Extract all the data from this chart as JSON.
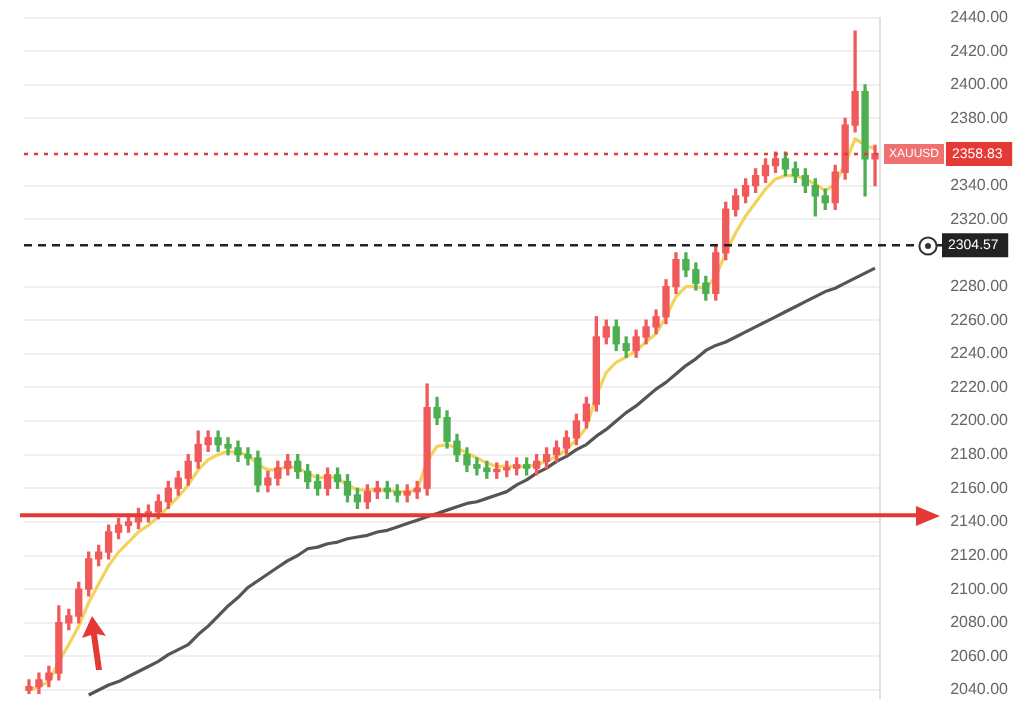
{
  "chart_data": {
    "type": "candlestick",
    "categories": [
      null,
      null,
      null,
      null,
      null,
      null,
      null,
      null,
      null,
      null,
      null,
      null,
      null,
      null,
      null,
      null,
      null,
      null,
      null,
      null,
      null,
      null,
      null,
      null,
      null,
      null,
      null,
      null,
      null,
      null,
      null,
      null,
      null,
      null,
      null,
      null,
      null,
      null,
      null,
      null,
      null,
      null,
      null,
      null,
      null,
      null,
      null,
      null,
      null,
      null,
      null,
      null,
      null,
      null,
      null,
      null,
      null,
      null,
      null,
      null,
      null,
      null,
      null,
      null,
      null,
      null,
      null,
      null,
      null,
      null,
      null,
      null,
      null,
      null,
      null,
      null,
      null,
      null,
      null,
      null,
      null,
      null,
      null,
      null,
      null,
      null
    ],
    "ohlc": [
      [
        2040,
        2046,
        2038,
        2042
      ],
      [
        2042,
        2050,
        2038,
        2046
      ],
      [
        2046,
        2054,
        2042,
        2050
      ],
      [
        2050,
        2090,
        2046,
        2080
      ],
      [
        2080,
        2088,
        2076,
        2084
      ],
      [
        2084,
        2104,
        2080,
        2100
      ],
      [
        2100,
        2122,
        2096,
        2118
      ],
      [
        2118,
        2126,
        2114,
        2122
      ],
      [
        2122,
        2138,
        2118,
        2134
      ],
      [
        2134,
        2142,
        2130,
        2138
      ],
      [
        2138,
        2144,
        2134,
        2140
      ],
      [
        2140,
        2148,
        2136,
        2144
      ],
      [
        2144,
        2150,
        2140,
        2146
      ],
      [
        2146,
        2156,
        2142,
        2152
      ],
      [
        2152,
        2164,
        2148,
        2160
      ],
      [
        2160,
        2170,
        2156,
        2166
      ],
      [
        2166,
        2180,
        2162,
        2176
      ],
      [
        2176,
        2194,
        2172,
        2186
      ],
      [
        2186,
        2194,
        2182,
        2190
      ],
      [
        2190,
        2194,
        2182,
        2186
      ],
      [
        2186,
        2190,
        2180,
        2184
      ],
      [
        2184,
        2188,
        2176,
        2180
      ],
      [
        2180,
        2184,
        2174,
        2178
      ],
      [
        2178,
        2182,
        2158,
        2162
      ],
      [
        2162,
        2170,
        2158,
        2166
      ],
      [
        2166,
        2176,
        2162,
        2172
      ],
      [
        2172,
        2180,
        2168,
        2176
      ],
      [
        2176,
        2180,
        2166,
        2170
      ],
      [
        2170,
        2174,
        2160,
        2164
      ],
      [
        2164,
        2168,
        2156,
        2160
      ],
      [
        2160,
        2172,
        2156,
        2168
      ],
      [
        2168,
        2172,
        2160,
        2164
      ],
      [
        2164,
        2168,
        2152,
        2156
      ],
      [
        2156,
        2160,
        2148,
        2152
      ],
      [
        2152,
        2162,
        2148,
        2158
      ],
      [
        2158,
        2164,
        2154,
        2160
      ],
      [
        2160,
        2164,
        2154,
        2158
      ],
      [
        2158,
        2162,
        2152,
        2156
      ],
      [
        2156,
        2162,
        2152,
        2158
      ],
      [
        2158,
        2164,
        2154,
        2160
      ],
      [
        2160,
        2222,
        2156,
        2208
      ],
      [
        2208,
        2214,
        2198,
        2202
      ],
      [
        2202,
        2206,
        2184,
        2188
      ],
      [
        2188,
        2192,
        2176,
        2180
      ],
      [
        2180,
        2184,
        2170,
        2174
      ],
      [
        2174,
        2178,
        2168,
        2172
      ],
      [
        2172,
        2176,
        2166,
        2170
      ],
      [
        2170,
        2175,
        2166,
        2171
      ],
      [
        2171,
        2176,
        2167,
        2172
      ],
      [
        2172,
        2178,
        2168,
        2174
      ],
      [
        2174,
        2178,
        2168,
        2172
      ],
      [
        2172,
        2180,
        2168,
        2176
      ],
      [
        2176,
        2184,
        2172,
        2180
      ],
      [
        2180,
        2188,
        2176,
        2184
      ],
      [
        2184,
        2194,
        2180,
        2190
      ],
      [
        2190,
        2204,
        2186,
        2200
      ],
      [
        2200,
        2214,
        2196,
        2210
      ],
      [
        2210,
        2262,
        2206,
        2250
      ],
      [
        2250,
        2260,
        2246,
        2256
      ],
      [
        2256,
        2260,
        2242,
        2246
      ],
      [
        2246,
        2250,
        2238,
        2242
      ],
      [
        2242,
        2254,
        2238,
        2250
      ],
      [
        2250,
        2260,
        2246,
        2256
      ],
      [
        2256,
        2266,
        2252,
        2262
      ],
      [
        2262,
        2284,
        2258,
        2280
      ],
      [
        2280,
        2300,
        2276,
        2296
      ],
      [
        2296,
        2300,
        2286,
        2290
      ],
      [
        2290,
        2294,
        2278,
        2282
      ],
      [
        2282,
        2286,
        2272,
        2276
      ],
      [
        2276,
        2304,
        2272,
        2300
      ],
      [
        2300,
        2330,
        2296,
        2326
      ],
      [
        2326,
        2338,
        2322,
        2334
      ],
      [
        2334,
        2344,
        2330,
        2340
      ],
      [
        2340,
        2350,
        2336,
        2346
      ],
      [
        2346,
        2356,
        2342,
        2352
      ],
      [
        2352,
        2360,
        2348,
        2356
      ],
      [
        2356,
        2360,
        2346,
        2350
      ],
      [
        2350,
        2354,
        2342,
        2346
      ],
      [
        2346,
        2350,
        2336,
        2340
      ],
      [
        2340,
        2344,
        2322,
        2334
      ],
      [
        2334,
        2338,
        2326,
        2330
      ],
      [
        2330,
        2352,
        2326,
        2348
      ],
      [
        2348,
        2380,
        2344,
        2376
      ],
      [
        2376,
        2432,
        2372,
        2396
      ],
      [
        2396,
        2400,
        2334,
        2356
      ],
      [
        2356,
        2364,
        2340,
        2359
      ]
    ],
    "colors": [
      "#f05a5a",
      "#f05a5a",
      "#f05a5a",
      "#f05a5a",
      "#f05a5a",
      "#f05a5a",
      "#f05a5a",
      "#f05a5a",
      "#f05a5a",
      "#f05a5a",
      "#f05a5a",
      "#f05a5a",
      "#f05a5a",
      "#f05a5a",
      "#f05a5a",
      "#f05a5a",
      "#f05a5a",
      "#f05a5a",
      "#f05a5a",
      "#4caf50",
      "#4caf50",
      "#4caf50",
      "#4caf50",
      "#4caf50",
      "#f05a5a",
      "#f05a5a",
      "#f05a5a",
      "#4caf50",
      "#4caf50",
      "#4caf50",
      "#f05a5a",
      "#4caf50",
      "#4caf50",
      "#4caf50",
      "#f05a5a",
      "#f05a5a",
      "#4caf50",
      "#4caf50",
      "#f05a5a",
      "#f05a5a",
      "#f05a5a",
      "#4caf50",
      "#4caf50",
      "#4caf50",
      "#4caf50",
      "#4caf50",
      "#4caf50",
      "#f05a5a",
      "#f05a5a",
      "#f05a5a",
      "#4caf50",
      "#f05a5a",
      "#f05a5a",
      "#f05a5a",
      "#f05a5a",
      "#f05a5a",
      "#f05a5a",
      "#f05a5a",
      "#f05a5a",
      "#4caf50",
      "#4caf50",
      "#f05a5a",
      "#f05a5a",
      "#f05a5a",
      "#f05a5a",
      "#f05a5a",
      "#4caf50",
      "#4caf50",
      "#4caf50",
      "#f05a5a",
      "#f05a5a",
      "#f05a5a",
      "#f05a5a",
      "#f05a5a",
      "#f05a5a",
      "#f05a5a",
      "#4caf50",
      "#4caf50",
      "#4caf50",
      "#4caf50",
      "#4caf50",
      "#f05a5a",
      "#f05a5a",
      "#f05a5a",
      "#4caf50",
      "#f05a5a"
    ],
    "series": [
      {
        "type": "line",
        "color": "#f2d35b",
        "values": [
          2040,
          2042,
          2045,
          2057,
          2067,
          2078,
          2092,
          2103,
          2114,
          2122,
          2128,
          2134,
          2138,
          2143,
          2149,
          2155,
          2162,
          2171,
          2177,
          2180,
          2182,
          2181,
          2180,
          2174,
          2171,
          2171,
          2173,
          2172,
          2169,
          2166,
          2167,
          2166,
          2162,
          2159,
          2159,
          2159,
          2159,
          2158,
          2158,
          2159,
          2176,
          2185,
          2186,
          2184,
          2181,
          2178,
          2175,
          2173,
          2173,
          2173,
          2173,
          2174,
          2176,
          2179,
          2183,
          2189,
          2196,
          2215,
          2229,
          2235,
          2238,
          2242,
          2247,
          2252,
          2262,
          2274,
          2280,
          2280,
          2279,
          2286,
          2300,
          2312,
          2322,
          2330,
          2338,
          2344,
          2346,
          2346,
          2344,
          2341,
          2337,
          2341,
          2353,
          2368,
          2364,
          2362
        ]
      },
      {
        "type": "line",
        "color": "#555555",
        "values": [
          null,
          null,
          null,
          null,
          null,
          null,
          2037,
          2040,
          2043,
          2045,
          2048,
          2051,
          2054,
          2057,
          2061,
          2064,
          2067,
          2073,
          2078,
          2084,
          2090,
          2095,
          2101,
          2105,
          2109,
          2113,
          2117,
          2120,
          2124,
          2125,
          2127,
          2128,
          2130,
          2131,
          2132,
          2134,
          2135,
          2137,
          2139,
          2141,
          2143,
          2145,
          2147,
          2149,
          2151,
          2152,
          2154,
          2156,
          2158,
          2162,
          2165,
          2169,
          2172,
          2176,
          2179,
          2183,
          2186,
          2191,
          2195,
          2200,
          2205,
          2209,
          2214,
          2219,
          2223,
          2228,
          2233,
          2237,
          2242,
          2245,
          2247,
          2250,
          2253,
          2256,
          2259,
          2262,
          2265,
          2268,
          2271,
          2274,
          2277,
          2279,
          2282,
          2285,
          2288,
          2291
        ]
      }
    ],
    "ylim": [
      2035,
      2440
    ],
    "yticks": [
      {
        "value": 2040,
        "label": "2040.00"
      },
      {
        "value": 2060,
        "label": "2060.00"
      },
      {
        "value": 2080,
        "label": "2080.00"
      },
      {
        "value": 2100,
        "label": "2100.00"
      },
      {
        "value": 2120,
        "label": "2120.00"
      },
      {
        "value": 2140,
        "label": "2140.00"
      },
      {
        "value": 2160,
        "label": "2160.00"
      },
      {
        "value": 2180,
        "label": "2180.00"
      },
      {
        "value": 2200,
        "label": "2200.00"
      },
      {
        "value": 2220,
        "label": "2220.00"
      },
      {
        "value": 2240,
        "label": "2240.00"
      },
      {
        "value": 2260,
        "label": "2260.00"
      },
      {
        "value": 2280,
        "label": "2280.00"
      },
      {
        "value": 2320,
        "label": "2320.00"
      },
      {
        "value": 2340,
        "label": "2340.00"
      },
      {
        "value": 2380,
        "label": "2380.00"
      },
      {
        "value": 2400,
        "label": "2400.00"
      },
      {
        "value": 2420,
        "label": "2420.00"
      },
      {
        "value": 2440,
        "label": "2440.00"
      }
    ],
    "ref_lines": [
      {
        "axis": "y",
        "value": 2358.83,
        "label": "2358.83",
        "color": "#e53935",
        "line_style": "dotted"
      },
      {
        "axis": "y",
        "value": 2304.57,
        "label": "2304.57",
        "color": "#222222",
        "line_style": "dashed"
      },
      {
        "axis": "y",
        "value": 2144,
        "color": "#e53935",
        "line_style": "solid"
      }
    ],
    "annotations": [
      "XAUUSD"
    ],
    "grid": "y",
    "tick_labels": "y",
    "legend": false
  }
}
